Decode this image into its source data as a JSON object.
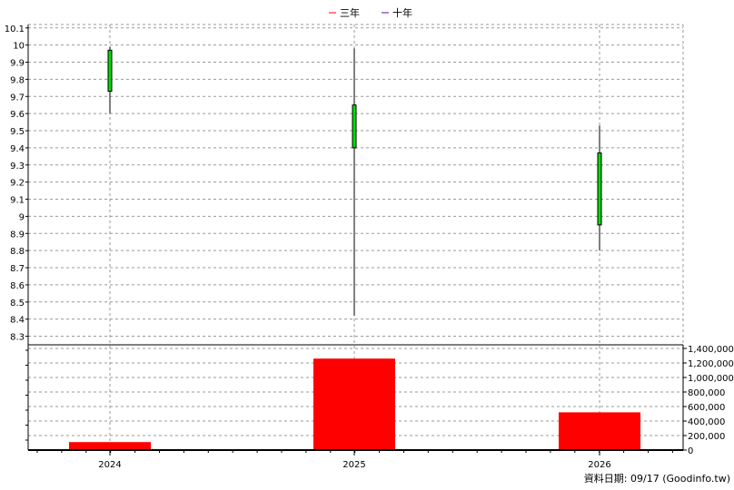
{
  "legend": [
    {
      "label": "三年",
      "color": "#ff0000"
    },
    {
      "label": "十年",
      "color": "#6a0dad"
    }
  ],
  "footer": "資料日期: 09/17  (Goodinfo.tw)",
  "colors": {
    "candle_up": "#00dd00",
    "volume": "#ff0000",
    "grid": "#999999"
  },
  "chart_data": [
    {
      "type": "candlestick",
      "categories": [
        "2024",
        "2025",
        "2026"
      ],
      "ohlc": [
        {
          "x": "2024",
          "open": 9.73,
          "high": 9.99,
          "low": 9.6,
          "close": 9.97
        },
        {
          "x": "2025",
          "open": 9.4,
          "high": 9.98,
          "low": 8.42,
          "close": 9.65
        },
        {
          "x": "2026",
          "open": 8.95,
          "high": 9.53,
          "low": 8.8,
          "close": 9.37
        }
      ],
      "y_ticks": [
        "10.1",
        "10",
        "9.9",
        "9.8",
        "9.7",
        "9.6",
        "9.5",
        "9.4",
        "9.3",
        "9.2",
        "9.1",
        "9",
        "8.9",
        "8.8",
        "8.7",
        "8.6",
        "8.5",
        "8.4",
        "8.3"
      ],
      "ylim": [
        8.25,
        10.12
      ],
      "grid": true
    },
    {
      "type": "bar",
      "categories": [
        "2024",
        "2025",
        "2026"
      ],
      "values": [
        110000,
        1260000,
        520000
      ],
      "y_ticks": [
        "0",
        "200,000",
        "400,000",
        "600,000",
        "800,000",
        "1,000,000",
        "1,200,000",
        "1,400,000"
      ],
      "ylim": [
        0,
        1450000
      ],
      "grid": true
    }
  ]
}
